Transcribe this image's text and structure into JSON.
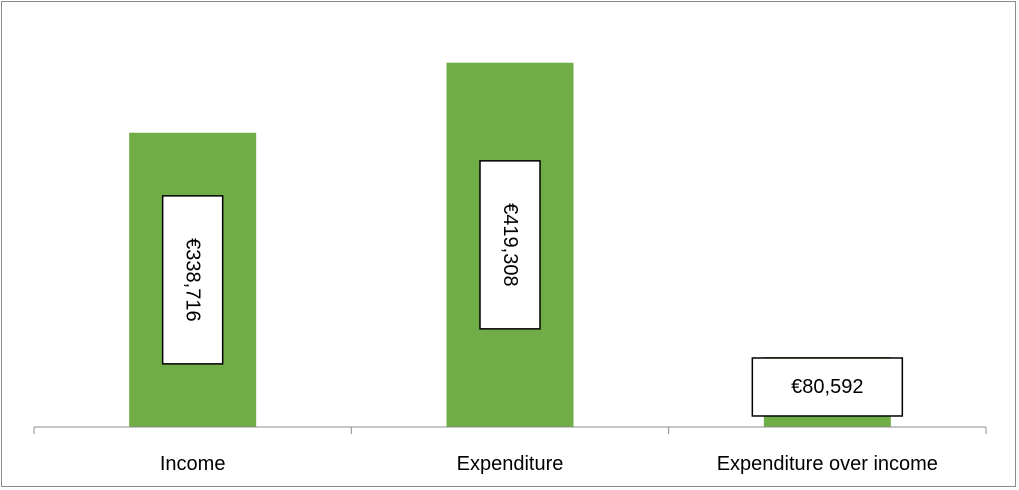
{
  "chart_data": {
    "type": "bar",
    "categories": [
      "Income",
      "Expenditure",
      "Expenditure over income"
    ],
    "values": [
      338716,
      419308,
      80592
    ],
    "data_labels": [
      "€338,716",
      "€419,308",
      "€80,592"
    ],
    "title": "",
    "xlabel": "",
    "ylabel": "",
    "ylim": [
      0,
      480000
    ],
    "grid": false,
    "legend": "none",
    "bar_color": "#70ad47",
    "axis_color": "#8c8c8c",
    "label_box_border": "#000000",
    "label_box_fill": "#ffffff"
  }
}
